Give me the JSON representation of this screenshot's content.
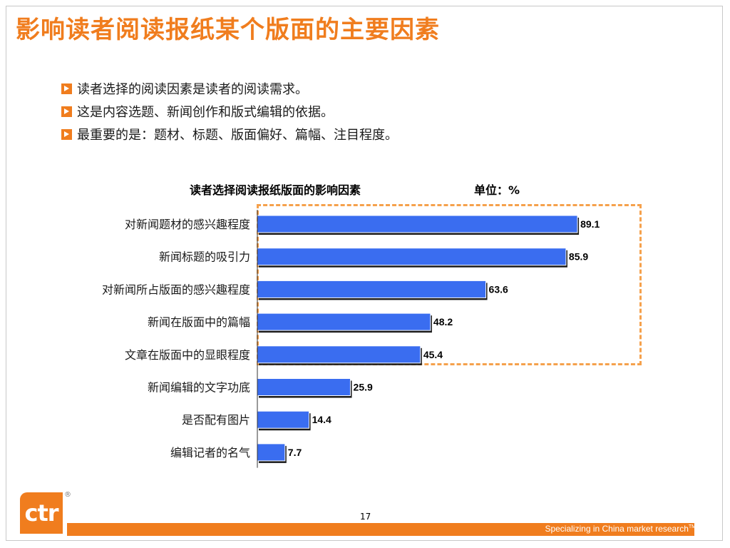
{
  "slide": {
    "title": "影响读者阅读报纸某个版面的主要因素",
    "bullets": [
      "读者选择的阅读因素是读者的阅读需求。",
      "这是内容选题、新闻创作和版式编辑的依据。",
      "最重要的是：题材、标题、版面偏好、篇幅、注目程度。"
    ],
    "page_number": "17",
    "logo_text": "ctr",
    "registered_mark": "®",
    "tagline": "Specializing in China market research",
    "tagline_tm": "TM"
  },
  "colors": {
    "accent": "#f07d1e",
    "bar": "#3a6df0",
    "highlight_border": "#f5a14c"
  },
  "chart_data": {
    "type": "bar",
    "orientation": "horizontal",
    "title": "读者选择阅读报纸版面的影响因素",
    "unit": "单位：%",
    "categories": [
      "对新闻题材的感兴趣程度",
      "新闻标题的吸引力",
      "对新闻所占版面的感兴趣程度",
      "新闻在版面中的篇幅",
      "文章在版面中的显眼程度",
      "新闻编辑的文字功底",
      "是否配有图片",
      "编辑记者的名气"
    ],
    "values": [
      89.1,
      85.9,
      63.6,
      48.2,
      45.4,
      25.9,
      14.4,
      7.7
    ],
    "xlim": [
      0,
      100
    ],
    "data_labels": true,
    "grid": false,
    "highlighted_categories": 5
  }
}
